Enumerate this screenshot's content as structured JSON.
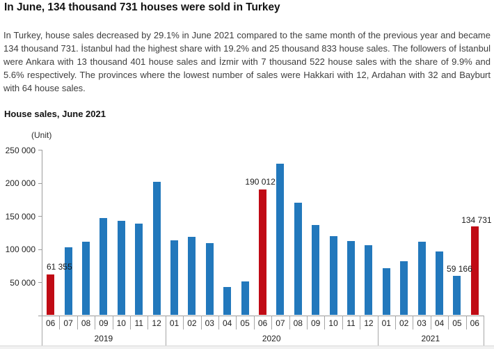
{
  "headline": "In June, 134 thousand 731 houses were sold in Turkey",
  "intro": {
    "lines": [
      "In Turkey, house sales decreased by 29.1% in June 2021 compared to the same month of the previous year and became",
      "134 thousand 731. İstanbul had the highest share with 19.2% and 25 thousand 833 house sales. The followers of İstanbul",
      "were Ankara with 13 thousand 401 house sales and İzmir with 7 thousand 522 house sales with the share of 9.9% and",
      "5.6% respectively. The provinces where the lowest number of sales were Hakkari with 12, Ardahan with 32 and Bayburt",
      "with 64 house sales."
    ]
  },
  "chart_data": {
    "type": "bar",
    "title": "House sales, June 2021",
    "unit_label": "(Unit)",
    "xlabel": "",
    "ylabel": "(Unit)",
    "ylim": [
      0,
      250000
    ],
    "ytick_step": 50000,
    "ytick_labels": [
      "50 000",
      "100 000",
      "150 000",
      "200 000",
      "250 000"
    ],
    "grid": false,
    "legend": false,
    "colors": {
      "bar": "#2278bc",
      "highlight": "#c00b15"
    },
    "bars": [
      {
        "year": "2019",
        "month": "06",
        "value": 61355,
        "highlight": true,
        "label": "61 355"
      },
      {
        "year": "2019",
        "month": "07",
        "value": 102236,
        "highlight": false,
        "label": ""
      },
      {
        "year": "2019",
        "month": "08",
        "value": 110538,
        "highlight": false,
        "label": ""
      },
      {
        "year": "2019",
        "month": "09",
        "value": 146903,
        "highlight": false,
        "label": ""
      },
      {
        "year": "2019",
        "month": "10",
        "value": 142810,
        "highlight": false,
        "label": ""
      },
      {
        "year": "2019",
        "month": "11",
        "value": 138372,
        "highlight": false,
        "label": ""
      },
      {
        "year": "2019",
        "month": "12",
        "value": 202074,
        "highlight": false,
        "label": ""
      },
      {
        "year": "2020",
        "month": "01",
        "value": 113615,
        "highlight": false,
        "label": ""
      },
      {
        "year": "2020",
        "month": "02",
        "value": 118753,
        "highlight": false,
        "label": ""
      },
      {
        "year": "2020",
        "month": "03",
        "value": 108670,
        "highlight": false,
        "label": ""
      },
      {
        "year": "2020",
        "month": "04",
        "value": 42783,
        "highlight": false,
        "label": ""
      },
      {
        "year": "2020",
        "month": "05",
        "value": 50936,
        "highlight": false,
        "label": ""
      },
      {
        "year": "2020",
        "month": "06",
        "value": 190012,
        "highlight": true,
        "label": "190 012"
      },
      {
        "year": "2020",
        "month": "07",
        "value": 229357,
        "highlight": false,
        "label": ""
      },
      {
        "year": "2020",
        "month": "08",
        "value": 170408,
        "highlight": false,
        "label": ""
      },
      {
        "year": "2020",
        "month": "09",
        "value": 136744,
        "highlight": false,
        "label": ""
      },
      {
        "year": "2020",
        "month": "10",
        "value": 119574,
        "highlight": false,
        "label": ""
      },
      {
        "year": "2020",
        "month": "11",
        "value": 112483,
        "highlight": false,
        "label": ""
      },
      {
        "year": "2020",
        "month": "12",
        "value": 105981,
        "highlight": false,
        "label": ""
      },
      {
        "year": "2021",
        "month": "01",
        "value": 70587,
        "highlight": false,
        "label": ""
      },
      {
        "year": "2021",
        "month": "02",
        "value": 81222,
        "highlight": false,
        "label": ""
      },
      {
        "year": "2021",
        "month": "03",
        "value": 111241,
        "highlight": false,
        "label": ""
      },
      {
        "year": "2021",
        "month": "04",
        "value": 95863,
        "highlight": false,
        "label": ""
      },
      {
        "year": "2021",
        "month": "05",
        "value": 59166,
        "highlight": false,
        "label": "59 166"
      },
      {
        "year": "2021",
        "month": "06",
        "value": 134731,
        "highlight": true,
        "label": "134 731"
      }
    ]
  }
}
